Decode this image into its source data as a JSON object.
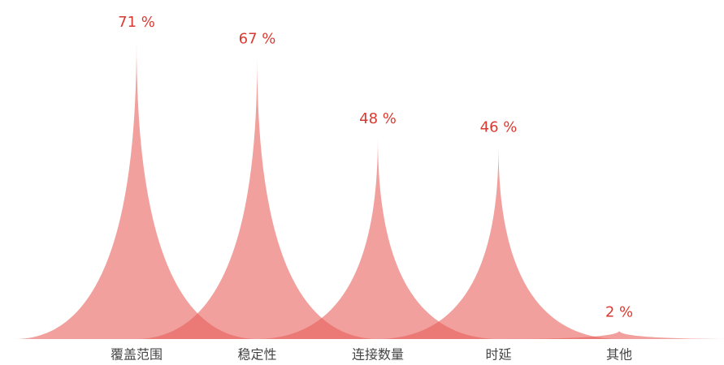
{
  "chart_data": {
    "type": "spike",
    "categories": [
      "覆盖范围",
      "稳定性",
      "连接数量",
      "时延",
      "其他"
    ],
    "values": [
      71,
      67,
      48,
      46,
      2
    ],
    "value_labels": [
      "71 %",
      "67 %",
      "48 %",
      "46 %",
      "2 %"
    ],
    "color": "#e8605c"
  }
}
